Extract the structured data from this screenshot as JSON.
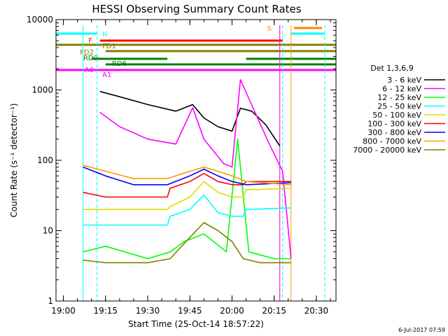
{
  "chart_data": {
    "type": "line",
    "title": "HESSI Observing Summary Count Rates",
    "xlabel": "Start Time (25-Oct-14 18:57:22)",
    "ylabel": "Count Rate (s⁻¹ detector⁻¹)",
    "x_ticks": [
      "19:00",
      "19:15",
      "19:30",
      "19:45",
      "20:00",
      "20:15",
      "20:30"
    ],
    "y_ticks": [
      "1",
      "10",
      "100",
      "1000",
      "10000"
    ],
    "ylim": [
      1,
      10000
    ],
    "y_scale": "log",
    "xlim": [
      "18:57:22",
      "20:37:00"
    ],
    "legend_title": "Det 1,3,6,9",
    "legend_position": "right",
    "series": [
      {
        "name": "3 - 6 keV",
        "color": "#000000",
        "points": [
          [
            "19:13",
            950
          ],
          [
            "19:20",
            800
          ],
          [
            "19:30",
            620
          ],
          [
            "19:40",
            500
          ],
          [
            "19:46",
            620
          ],
          [
            "19:50",
            400
          ],
          [
            "19:55",
            300
          ],
          [
            "20:00",
            260
          ],
          [
            "20:03",
            550
          ],
          [
            "20:07",
            500
          ],
          [
            "20:12",
            320
          ],
          [
            "20:17",
            160
          ]
        ]
      },
      {
        "name": "6 - 12 keV",
        "color": "#ff00ff",
        "points": [
          [
            "19:13",
            480
          ],
          [
            "19:20",
            300
          ],
          [
            "19:30",
            200
          ],
          [
            "19:40",
            170
          ],
          [
            "19:46",
            560
          ],
          [
            "19:50",
            200
          ],
          [
            "19:57",
            90
          ],
          [
            "20:00",
            80
          ],
          [
            "20:03",
            1400
          ],
          [
            "20:08",
            500
          ],
          [
            "20:13",
            180
          ],
          [
            "20:18",
            70
          ],
          [
            "20:21",
            4
          ]
        ]
      },
      {
        "name": "12 - 25 keV",
        "color": "#00ff00",
        "points": [
          [
            "19:07",
            5
          ],
          [
            "19:15",
            6
          ],
          [
            "19:30",
            4
          ],
          [
            "19:38",
            5
          ],
          [
            "19:43",
            7
          ],
          [
            "19:50",
            9
          ],
          [
            "19:58",
            5
          ],
          [
            "20:02",
            200
          ],
          [
            "20:06",
            5
          ],
          [
            "20:15",
            4
          ],
          [
            "20:21",
            4
          ]
        ]
      },
      {
        "name": "25 - 50 keV",
        "color": "#00ffff",
        "points": [
          [
            "19:07",
            12
          ],
          [
            "19:15",
            12
          ],
          [
            "19:37",
            12
          ],
          [
            "19:38",
            16
          ],
          [
            "19:45",
            20
          ],
          [
            "19:50",
            32
          ],
          [
            "19:55",
            18
          ],
          [
            "20:00",
            16
          ],
          [
            "20:04",
            16
          ],
          [
            "20:05",
            20
          ],
          [
            "20:21",
            21
          ]
        ]
      },
      {
        "name": "50 - 100 keV",
        "color": "#dddd00",
        "points": [
          [
            "19:07",
            20
          ],
          [
            "19:15",
            20
          ],
          [
            "19:37",
            20
          ],
          [
            "19:38",
            22
          ],
          [
            "19:45",
            30
          ],
          [
            "19:50",
            50
          ],
          [
            "19:55",
            35
          ],
          [
            "20:00",
            30
          ],
          [
            "20:04",
            30
          ],
          [
            "20:05",
            38
          ],
          [
            "20:21",
            40
          ]
        ]
      },
      {
        "name": "100 - 300 keV",
        "color": "#ff0000",
        "points": [
          [
            "19:07",
            35
          ],
          [
            "19:15",
            30
          ],
          [
            "19:37",
            30
          ],
          [
            "19:38",
            40
          ],
          [
            "19:45",
            50
          ],
          [
            "19:50",
            65
          ],
          [
            "19:55",
            50
          ],
          [
            "20:00",
            45
          ],
          [
            "20:04",
            45
          ],
          [
            "20:05",
            50
          ],
          [
            "20:21",
            50
          ]
        ]
      },
      {
        "name": "300 - 800 keV",
        "color": "#0000ff",
        "points": [
          [
            "19:07",
            80
          ],
          [
            "19:15",
            60
          ],
          [
            "19:25",
            45
          ],
          [
            "19:37",
            45
          ],
          [
            "19:45",
            60
          ],
          [
            "19:50",
            75
          ],
          [
            "19:55",
            60
          ],
          [
            "20:00",
            50
          ],
          [
            "20:05",
            45
          ],
          [
            "20:21",
            48
          ]
        ]
      },
      {
        "name": "800 - 7000 keV",
        "color": "#ff9900",
        "points": [
          [
            "19:07",
            85
          ],
          [
            "19:15",
            70
          ],
          [
            "19:25",
            55
          ],
          [
            "19:37",
            55
          ],
          [
            "19:45",
            70
          ],
          [
            "19:50",
            80
          ],
          [
            "19:55",
            70
          ],
          [
            "20:00",
            60
          ],
          [
            "20:05",
            50
          ],
          [
            "20:21",
            45
          ]
        ]
      },
      {
        "name": "7000 - 20000 keV",
        "color": "#808000",
        "points": [
          [
            "19:07",
            3.8
          ],
          [
            "19:15",
            3.5
          ],
          [
            "19:30",
            3.5
          ],
          [
            "19:38",
            4
          ],
          [
            "19:45",
            8
          ],
          [
            "19:50",
            13
          ],
          [
            "19:55",
            10
          ],
          [
            "20:00",
            7
          ],
          [
            "20:04",
            4
          ],
          [
            "20:10",
            3.5
          ],
          [
            "20:21",
            3.5
          ]
        ]
      }
    ],
    "flags": [
      {
        "label": "N",
        "color": "#00ffff",
        "segments": [
          [
            "18:57:22",
            "19:12"
          ],
          [
            "20:21",
            "20:33"
          ]
        ]
      },
      {
        "label": "S",
        "color": "#ff8800",
        "segments": [
          [
            "20:22",
            "20:32"
          ]
        ]
      },
      {
        "label": "F",
        "color": "#ff0000",
        "segments": [
          [
            "19:13",
            "20:18"
          ]
        ]
      },
      {
        "label": "FD1",
        "color": "#808000",
        "segments": [
          [
            "18:57:22",
            "20:37"
          ]
        ]
      },
      {
        "label": "FD2",
        "color": "#808000",
        "segments": [
          [
            "19:15",
            "20:37"
          ]
        ]
      },
      {
        "label": "RD0",
        "color": "#008000",
        "segments": [
          [
            "19:10",
            "19:37"
          ],
          [
            "20:05",
            "20:37"
          ]
        ]
      },
      {
        "label": "RD6",
        "color": "#008000",
        "segments": [
          [
            "19:15",
            "20:37"
          ]
        ]
      },
      {
        "label": "A0",
        "color": "#ff00ff",
        "segments": [
          [
            "18:57:22",
            "20:37"
          ]
        ]
      },
      {
        "label": "A1",
        "color": "#ff00ff",
        "segments": [
          [
            "18:57:22",
            "20:37"
          ]
        ]
      }
    ]
  },
  "footer": {
    "timestamp": "6-Jul-2017 07:59"
  }
}
